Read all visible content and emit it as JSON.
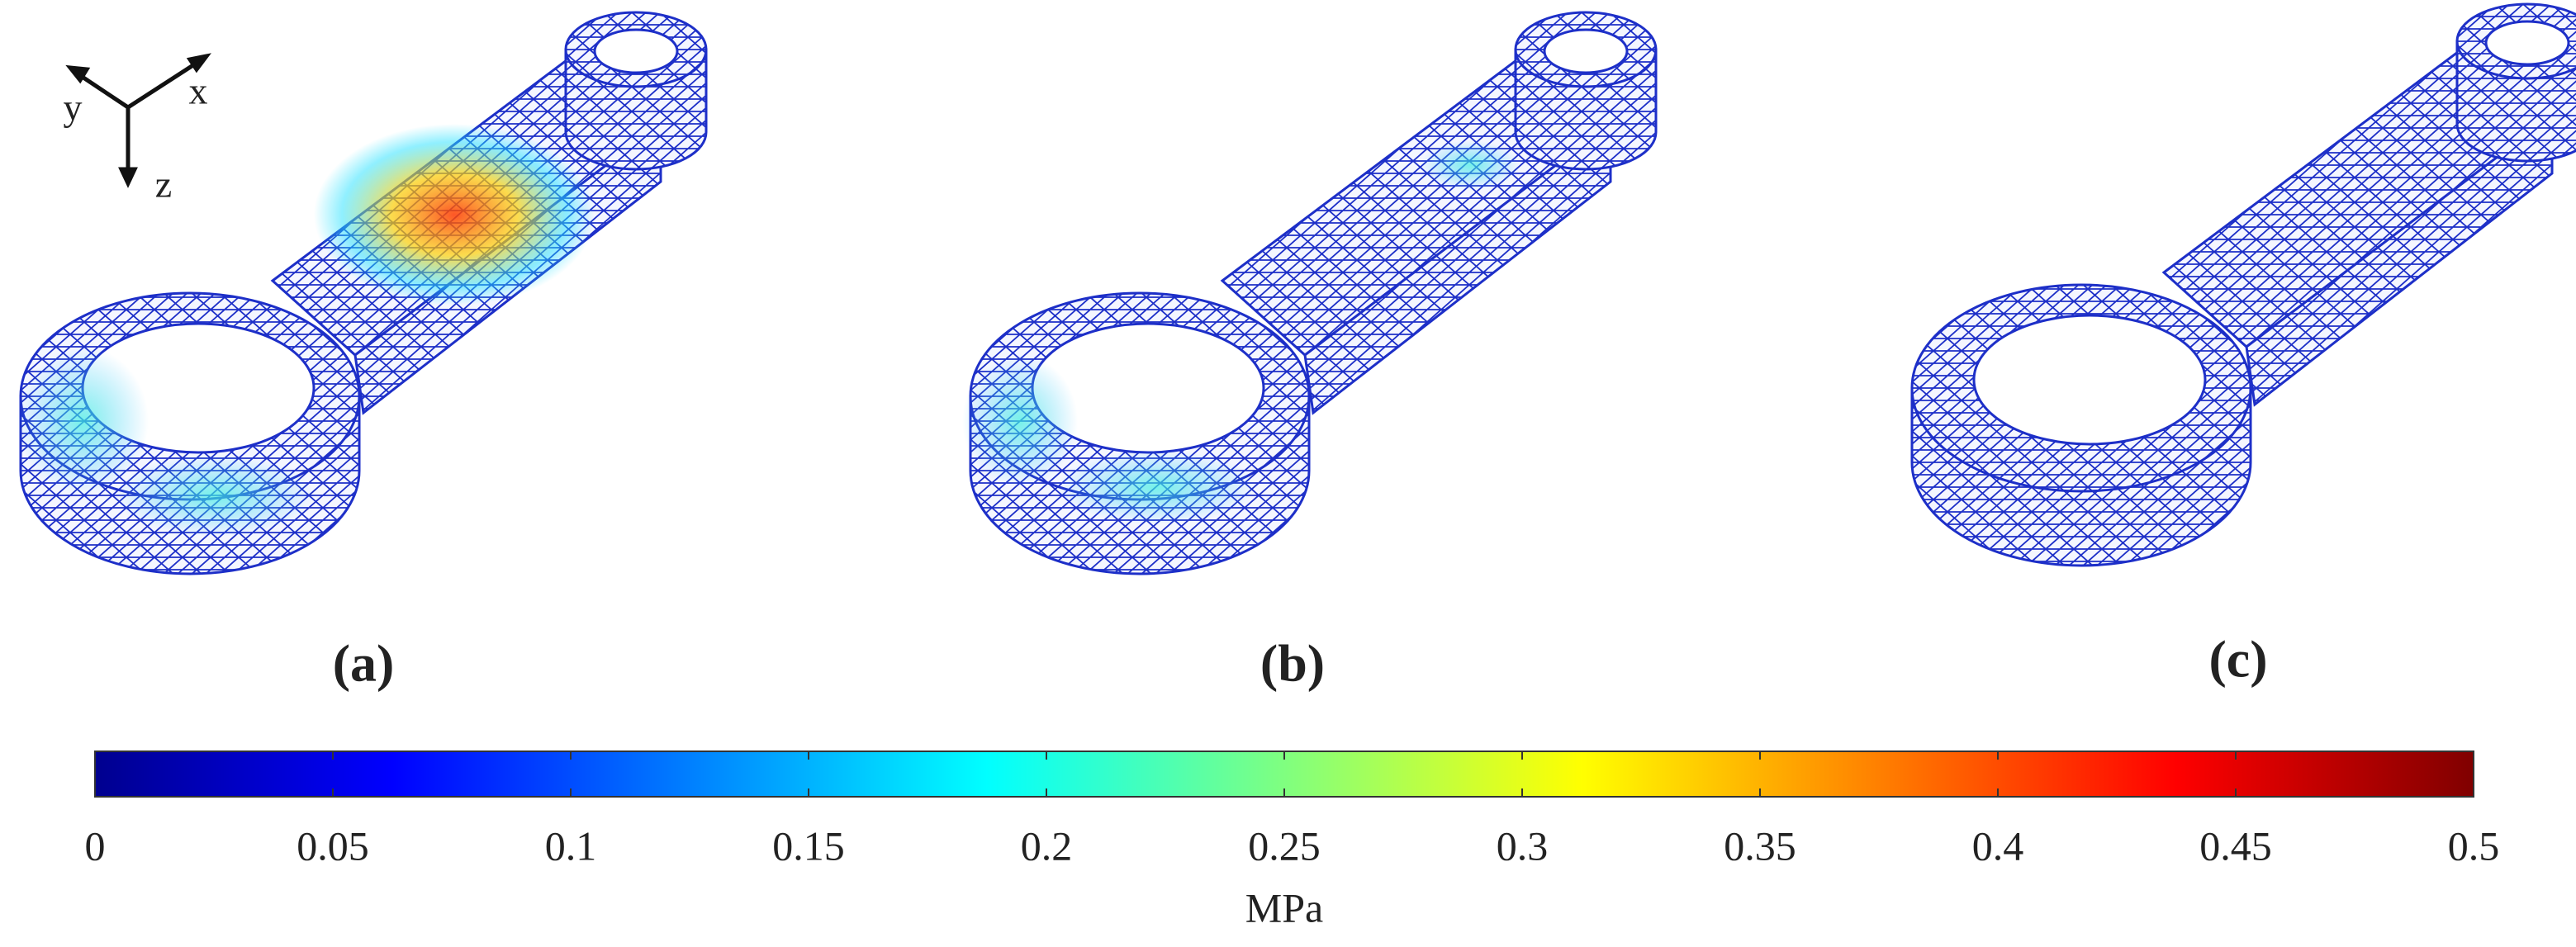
{
  "panels": [
    {
      "label": "(a)"
    },
    {
      "label": "(b)"
    },
    {
      "label": "(c)"
    }
  ],
  "axes_triad": {
    "x": "x",
    "y": "y",
    "z": "z"
  },
  "colorbar": {
    "range": [
      0,
      0.5
    ],
    "ticks": [
      0,
      0.05,
      0.1,
      0.15,
      0.2,
      0.25,
      0.3,
      0.35,
      0.4,
      0.45,
      0.5
    ],
    "label": "MPa"
  }
}
